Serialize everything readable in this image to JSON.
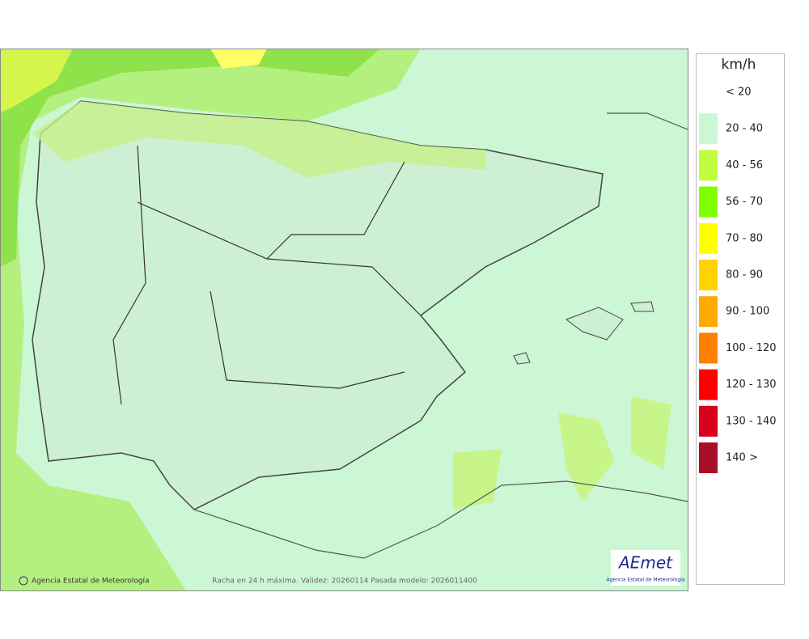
{
  "legend": {
    "title": "km/h",
    "items": [
      {
        "label": "< 20",
        "color": "#ffffff"
      },
      {
        "label": "20 - 40",
        "color": "#ccf7d4"
      },
      {
        "label": "40 - 56",
        "color": "#bfff40"
      },
      {
        "label": "56 - 70",
        "color": "#80ff00"
      },
      {
        "label": "70 - 80",
        "color": "#ffff00"
      },
      {
        "label": "80 - 90",
        "color": "#ffd200"
      },
      {
        "label": "90 - 100",
        "color": "#ffaa00"
      },
      {
        "label": "100 - 120",
        "color": "#ff8000"
      },
      {
        "label": "120 - 130",
        "color": "#ff0000"
      },
      {
        "label": "130 - 140",
        "color": "#d9001a"
      },
      {
        "label": "140 >",
        "color": "#a8102a"
      }
    ]
  },
  "footer": {
    "credit": "Agencia Estatal de Meteorología",
    "caption": "Racha en 24 h máxima. Validez: 20260114 Pasada modelo: 2026011400"
  },
  "logo": {
    "name": "AEmet",
    "subtitle": "Agencia Estatal de Meteorología"
  }
}
